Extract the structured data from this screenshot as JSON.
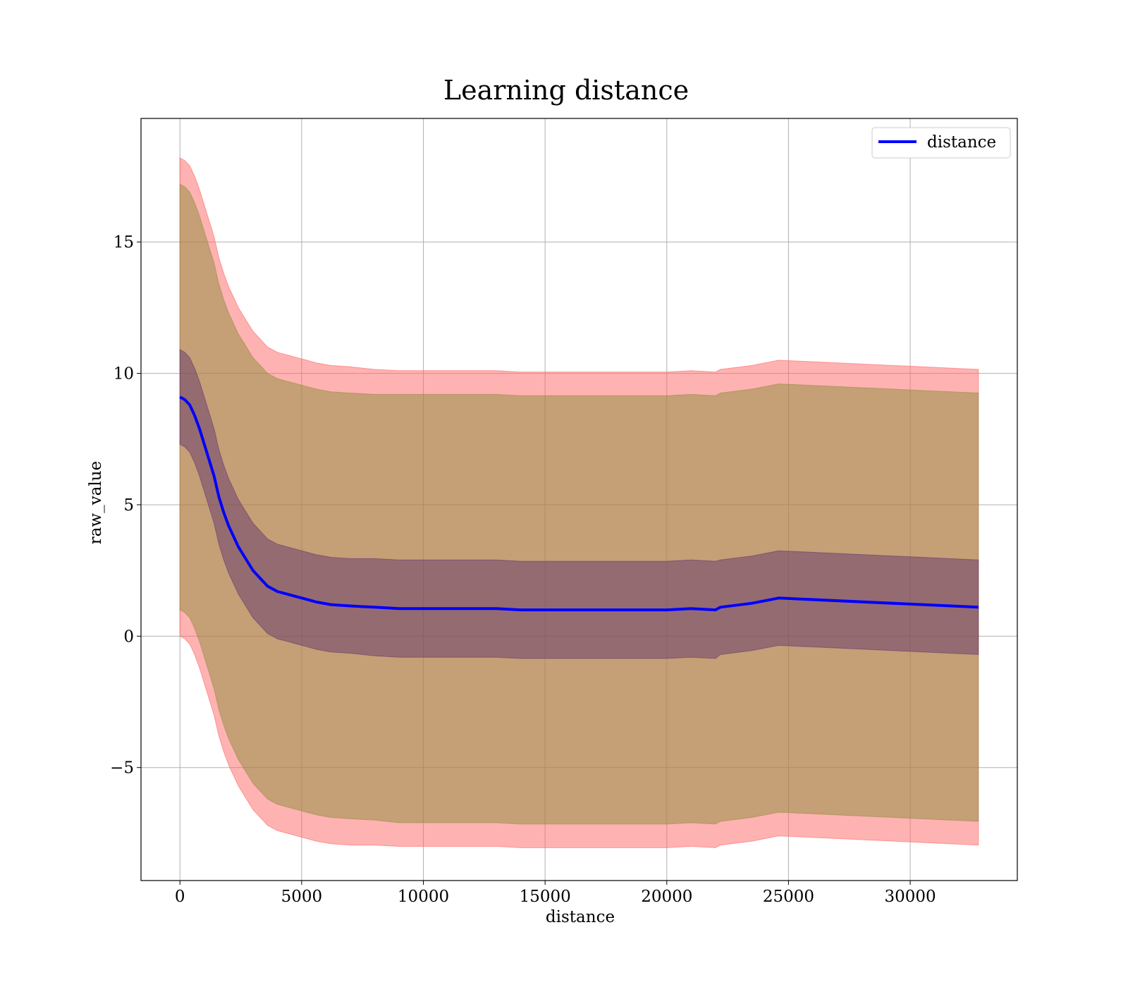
{
  "chart_data": {
    "type": "line",
    "title": "Learning distance",
    "xlabel": "distance",
    "ylabel": "raw_value",
    "xlim": [
      -1600,
      34400
    ],
    "ylim": [
      -9.3,
      19.7
    ],
    "x_ticks": [
      0,
      5000,
      10000,
      15000,
      20000,
      25000,
      30000
    ],
    "x_tick_labels": [
      "0",
      "5000",
      "10000",
      "15000",
      "20000",
      "25000",
      "30000"
    ],
    "y_ticks": [
      -5,
      0,
      5,
      10,
      15
    ],
    "y_tick_labels": [
      "−5",
      "0",
      "5",
      "10",
      "15"
    ],
    "grid": true,
    "legend_position": "top-right",
    "colors": {
      "line": "#0000ff",
      "outer_band": "#ff6666",
      "middle_band": "#8b8b3a",
      "inner_band": "#5a2d6e",
      "axes": "#000000",
      "grid": "#b0b0b0"
    },
    "series": [
      {
        "name": "distance",
        "x": [
          0,
          200,
          400,
          600,
          800,
          1000,
          1200,
          1400,
          1600,
          1800,
          2000,
          2200,
          2400,
          2600,
          2800,
          3000,
          3200,
          3400,
          3600,
          3800,
          4000,
          4400,
          4800,
          5200,
          5600,
          6200,
          7000,
          8000,
          9000,
          10000,
          11000,
          12000,
          13000,
          14000,
          15000,
          16000,
          17000,
          18000,
          19000,
          20000,
          21000,
          22000,
          22200,
          23500,
          24600,
          32800
        ],
        "y": [
          9.1,
          9.0,
          8.8,
          8.4,
          7.9,
          7.3,
          6.7,
          6.1,
          5.3,
          4.7,
          4.2,
          3.8,
          3.4,
          3.1,
          2.8,
          2.5,
          2.3,
          2.1,
          1.9,
          1.8,
          1.7,
          1.6,
          1.5,
          1.4,
          1.3,
          1.2,
          1.15,
          1.1,
          1.05,
          1.05,
          1.05,
          1.05,
          1.05,
          1.0,
          1.0,
          1.0,
          1.0,
          1.0,
          1.0,
          1.0,
          1.05,
          1.0,
          1.1,
          1.25,
          1.45,
          1.1
        ],
        "band_inner_half_width": [
          1.8,
          1.8,
          1.8,
          1.8,
          1.8,
          1.8,
          1.8,
          1.8,
          1.8,
          1.8,
          1.8,
          1.8,
          1.8,
          1.8,
          1.8,
          1.8,
          1.8,
          1.8,
          1.8,
          1.8,
          1.8,
          1.8,
          1.8,
          1.8,
          1.8,
          1.8,
          1.8,
          1.85,
          1.85,
          1.85,
          1.85,
          1.85,
          1.85,
          1.85,
          1.85,
          1.85,
          1.85,
          1.85,
          1.85,
          1.85,
          1.85,
          1.85,
          1.8,
          1.8,
          1.8,
          1.8
        ],
        "band_middle_half_width": [
          8.1,
          8.1,
          8.1,
          8.1,
          8.1,
          8.1,
          8.1,
          8.1,
          8.1,
          8.1,
          8.1,
          8.1,
          8.1,
          8.1,
          8.1,
          8.1,
          8.1,
          8.1,
          8.1,
          8.1,
          8.1,
          8.1,
          8.1,
          8.1,
          8.1,
          8.1,
          8.1,
          8.1,
          8.15,
          8.15,
          8.15,
          8.15,
          8.15,
          8.15,
          8.15,
          8.15,
          8.15,
          8.15,
          8.15,
          8.15,
          8.15,
          8.15,
          8.15,
          8.15,
          8.15,
          8.15
        ],
        "band_outer_half_width": [
          9.1,
          9.1,
          9.1,
          9.1,
          9.1,
          9.1,
          9.1,
          9.1,
          9.1,
          9.1,
          9.1,
          9.1,
          9.1,
          9.1,
          9.1,
          9.1,
          9.1,
          9.1,
          9.1,
          9.1,
          9.1,
          9.1,
          9.1,
          9.1,
          9.1,
          9.1,
          9.1,
          9.05,
          9.05,
          9.05,
          9.05,
          9.05,
          9.05,
          9.05,
          9.05,
          9.05,
          9.05,
          9.05,
          9.05,
          9.05,
          9.05,
          9.05,
          9.05,
          9.05,
          9.05,
          9.05
        ]
      }
    ]
  }
}
